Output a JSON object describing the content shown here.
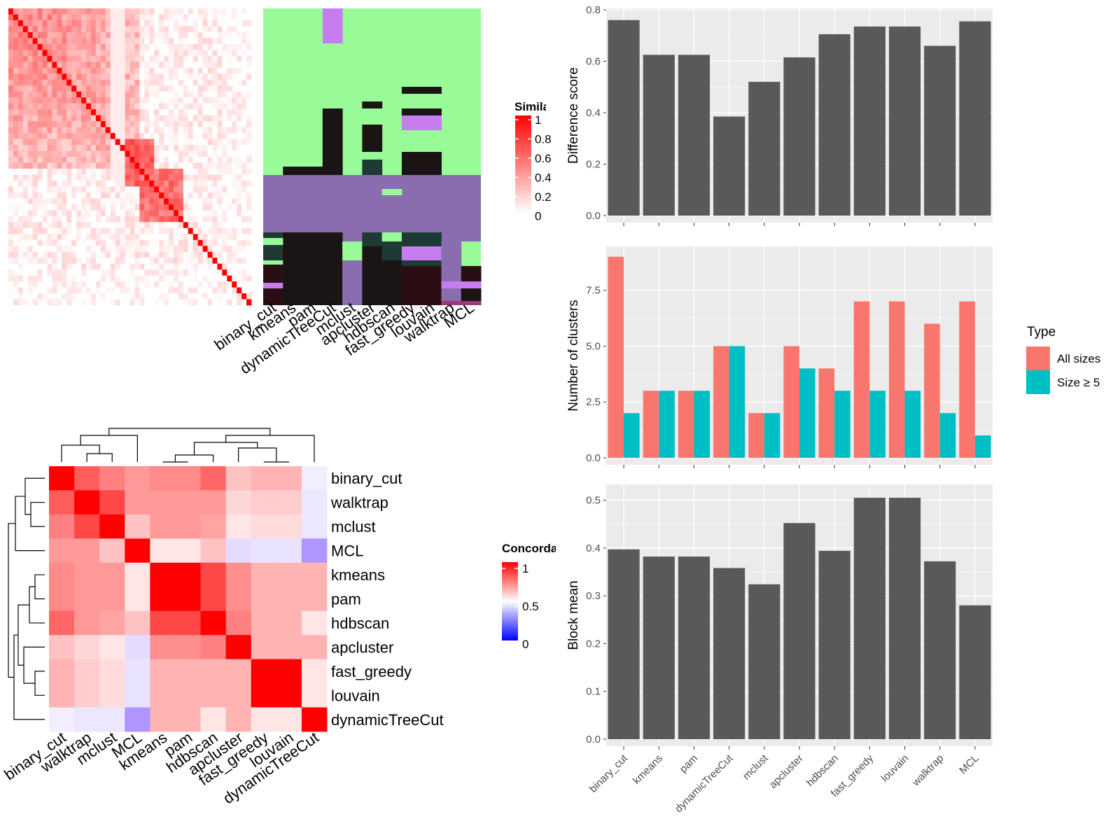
{
  "colors": {
    "panel_bg": "#EBEBEB",
    "bar_gray": "#595959",
    "all_sizes": "#F8766D",
    "size_ge5": "#00BFC4",
    "sim_green": "#98FB98",
    "sim_purple": "#8A6DAF",
    "sim_lilac": "#C77DF0",
    "sim_black": "#1A1414",
    "sim_darkteal": "#1E3A34",
    "sim_darkmaroon": "#2A0E14"
  },
  "similarity": {
    "legend_title": "Similarity",
    "legend_ticks": [
      "1",
      "0.8",
      "0.6",
      "0.4",
      "0.2",
      "0"
    ],
    "method_labels": [
      "binary_cut",
      "kmeans",
      "pam",
      "dynamicTreeCut",
      "mclust",
      "apcluster",
      "hdbscan",
      "fast_greedy",
      "louvain",
      "walktrap",
      "MCL"
    ]
  },
  "concordance": {
    "legend_title": "Concordance",
    "legend_ticks": [
      "1",
      "0.5",
      "0"
    ],
    "row_labels": [
      "binary_cut",
      "walktrap",
      "mclust",
      "MCL",
      "kmeans",
      "pam",
      "hdbscan",
      "apcluster",
      "fast_greedy",
      "louvain",
      "dynamicTreeCut"
    ],
    "col_labels": [
      "binary_cut",
      "walktrap",
      "mclust",
      "MCL",
      "kmeans",
      "pam",
      "hdbscan",
      "apcluster",
      "fast_greedy",
      "louvain",
      "dynamicTreeCut"
    ],
    "matrix": [
      [
        1.0,
        0.82,
        0.75,
        0.7,
        0.73,
        0.73,
        0.8,
        0.62,
        0.65,
        0.65,
        0.45
      ],
      [
        0.82,
        1.0,
        0.86,
        0.7,
        0.7,
        0.7,
        0.7,
        0.58,
        0.6,
        0.6,
        0.43
      ],
      [
        0.75,
        0.86,
        1.0,
        0.62,
        0.7,
        0.7,
        0.68,
        0.55,
        0.57,
        0.57,
        0.43
      ],
      [
        0.7,
        0.7,
        0.62,
        1.0,
        0.55,
        0.55,
        0.62,
        0.4,
        0.42,
        0.42,
        0.2
      ],
      [
        0.73,
        0.7,
        0.7,
        0.55,
        1.0,
        1.0,
        0.86,
        0.72,
        0.65,
        0.65,
        0.65
      ],
      [
        0.73,
        0.7,
        0.7,
        0.55,
        1.0,
        1.0,
        0.86,
        0.72,
        0.65,
        0.65,
        0.65
      ],
      [
        0.8,
        0.7,
        0.68,
        0.62,
        0.86,
        0.86,
        1.0,
        0.75,
        0.65,
        0.65,
        0.55
      ],
      [
        0.62,
        0.58,
        0.55,
        0.4,
        0.72,
        0.72,
        0.75,
        1.0,
        0.65,
        0.65,
        0.65
      ],
      [
        0.65,
        0.6,
        0.57,
        0.42,
        0.65,
        0.65,
        0.65,
        0.65,
        1.0,
        1.0,
        0.55
      ],
      [
        0.65,
        0.6,
        0.57,
        0.42,
        0.65,
        0.65,
        0.65,
        0.65,
        1.0,
        1.0,
        0.55
      ],
      [
        0.45,
        0.43,
        0.43,
        0.2,
        0.65,
        0.65,
        0.55,
        0.65,
        0.55,
        0.55,
        1.0
      ]
    ]
  },
  "chart_data": [
    {
      "type": "bar",
      "categories": [
        "binary_cut",
        "kmeans",
        "pam",
        "dynamicTreeCut",
        "mclust",
        "apcluster",
        "hdbscan",
        "fast_greedy",
        "louvain",
        "walktrap",
        "MCL"
      ],
      "values": [
        0.76,
        0.625,
        0.625,
        0.385,
        0.52,
        0.615,
        0.705,
        0.735,
        0.735,
        0.66,
        0.755
      ],
      "xlabel": "",
      "ylabel": "Difference score",
      "ylim": [
        0,
        0.8
      ],
      "yticks": [
        "0.0",
        "0.2",
        "0.4",
        "0.6",
        "0.8"
      ],
      "grid": true
    },
    {
      "type": "bar",
      "categories": [
        "binary_cut",
        "kmeans",
        "pam",
        "dynamicTreeCut",
        "mclust",
        "apcluster",
        "hdbscan",
        "fast_greedy",
        "louvain",
        "walktrap",
        "MCL"
      ],
      "series": [
        {
          "name": "All sizes",
          "values": [
            9,
            3,
            3,
            5,
            2,
            5,
            4,
            7,
            7,
            6,
            7
          ]
        },
        {
          "name": "Size ≥ 5",
          "values": [
            2,
            3,
            3,
            5,
            2,
            4,
            3,
            3,
            3,
            2,
            1
          ]
        }
      ],
      "xlabel": "",
      "ylabel": "Number of clusters",
      "ylim": [
        0,
        9.4
      ],
      "yticks": [
        "0.0",
        "2.5",
        "5.0",
        "7.5"
      ],
      "legend_title": "Type",
      "legend_position": "right",
      "grid": true
    },
    {
      "type": "bar",
      "categories": [
        "binary_cut",
        "kmeans",
        "pam",
        "dynamicTreeCut",
        "mclust",
        "apcluster",
        "hdbscan",
        "fast_greedy",
        "louvain",
        "walktrap",
        "MCL"
      ],
      "values": [
        0.397,
        0.382,
        0.382,
        0.358,
        0.324,
        0.452,
        0.394,
        0.505,
        0.505,
        0.372,
        0.28
      ],
      "xlabel": "",
      "ylabel": "Block mean",
      "ylim": [
        0,
        0.53
      ],
      "yticks": [
        "0.0",
        "0.1",
        "0.2",
        "0.3",
        "0.4",
        "0.5"
      ],
      "grid": true
    }
  ]
}
